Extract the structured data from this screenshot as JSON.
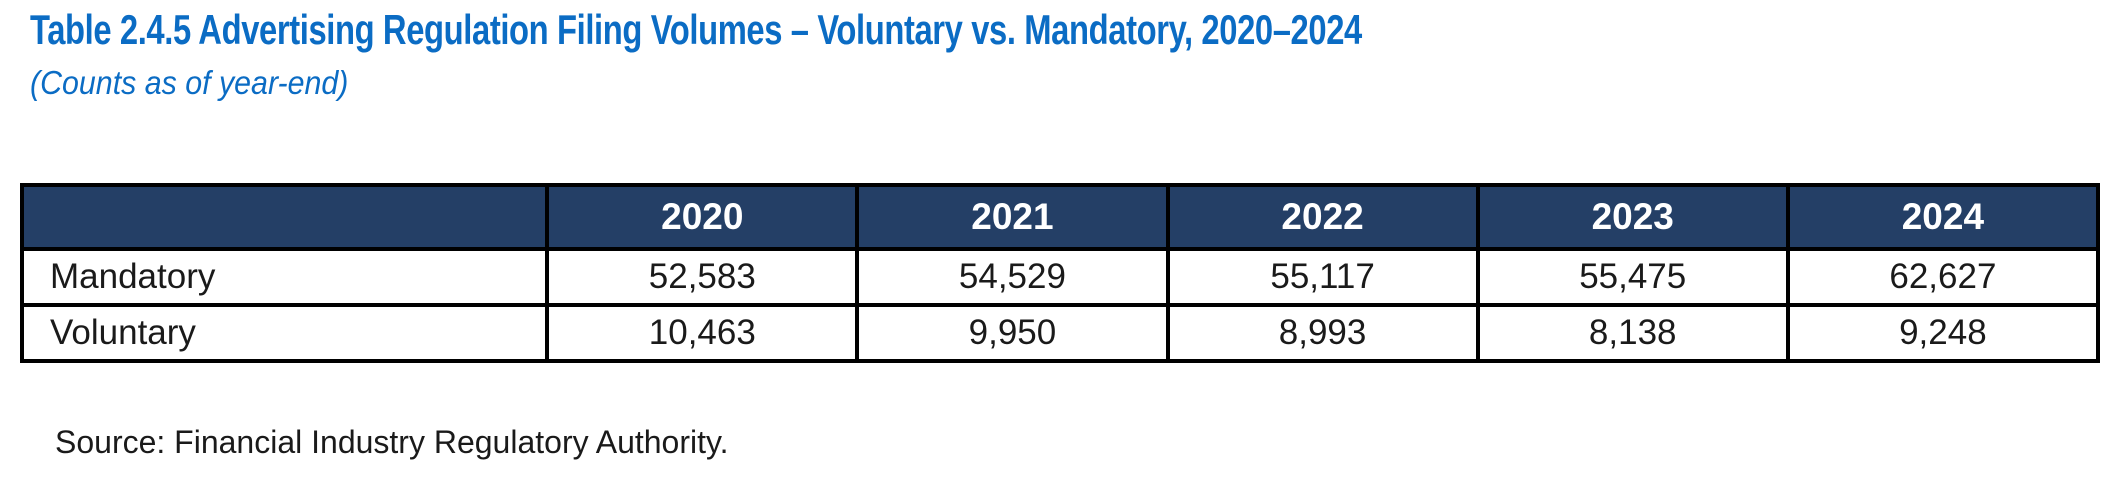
{
  "title": "Table 2.4.5 Advertising Regulation Filing Volumes – Voluntary vs. Mandatory, 2020–2024",
  "subtitle": "(Counts as of year-end)",
  "source": "Source: Financial Industry Regulatory Authority.",
  "colors": {
    "title_blue": "#0b6cc4",
    "header_bg": "#243f66",
    "header_text": "#ffffff",
    "border": "#000000",
    "body_text": "#1a1a1a",
    "page_bg": "#ffffff"
  },
  "table": {
    "corner_label": "",
    "columns": [
      "2020",
      "2021",
      "2022",
      "2023",
      "2024"
    ],
    "rows": [
      {
        "label": "Mandatory",
        "values": [
          "52,583",
          "54,529",
          "55,117",
          "55,475",
          "62,627"
        ]
      },
      {
        "label": "Voluntary",
        "values": [
          "10,463",
          "9,950",
          "8,993",
          "8,138",
          "9,248"
        ]
      }
    ]
  },
  "chart_data": {
    "type": "table",
    "title": "Table 2.4.5 Advertising Regulation Filing Volumes – Voluntary vs. Mandatory, 2020–2024",
    "subtitle": "(Counts as of year-end)",
    "categories": [
      "2020",
      "2021",
      "2022",
      "2023",
      "2024"
    ],
    "series": [
      {
        "name": "Mandatory",
        "values": [
          52583,
          54529,
          55117,
          55475,
          62627
        ]
      },
      {
        "name": "Voluntary",
        "values": [
          10463,
          9950,
          8993,
          8138,
          9248
        ]
      }
    ],
    "source": "Source: Financial Industry Regulatory Authority."
  }
}
